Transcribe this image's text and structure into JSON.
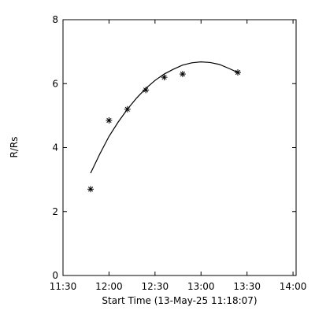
{
  "chart_data": {
    "type": "scatter",
    "xlabel": "Start Time (13-May-25 11:18:07)",
    "ylabel": "R/Rs",
    "xlim": [
      "11:30",
      "14:02"
    ],
    "ylim": [
      0,
      8
    ],
    "xticks": [
      "11:30",
      "12:00",
      "12:30",
      "13:00",
      "13:30",
      "14:00"
    ],
    "yticks": [
      0,
      2,
      4,
      6,
      8
    ],
    "grid": false,
    "series": [
      {
        "marker": "asterisk",
        "x": [
          "11:48",
          "12:00",
          "12:12",
          "12:24",
          "12:36",
          "12:48",
          "13:24"
        ],
        "y": [
          2.7,
          4.85,
          5.2,
          5.8,
          6.2,
          6.3,
          6.35
        ]
      },
      {
        "mark": "line",
        "x": [
          "11:48",
          "11:54",
          "12:00",
          "12:06",
          "12:12",
          "12:18",
          "12:24",
          "12:30",
          "12:36",
          "12:42",
          "12:48",
          "12:54",
          "13:00",
          "13:06",
          "13:12",
          "13:18",
          "13:24"
        ],
        "y": [
          3.2,
          3.8,
          4.35,
          4.8,
          5.2,
          5.55,
          5.85,
          6.1,
          6.3,
          6.45,
          6.58,
          6.65,
          6.68,
          6.66,
          6.6,
          6.48,
          6.35
        ]
      }
    ],
    "colors": {
      "axes": "#000000",
      "marker": "#000000",
      "line": "#000000",
      "background": "#ffffff"
    }
  }
}
